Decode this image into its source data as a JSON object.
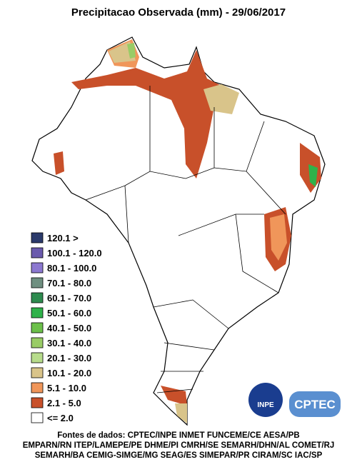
{
  "header": {
    "title": "Precipitacao Observada (mm) - 29/06/2017"
  },
  "legend": [
    {
      "label": "120.1 >",
      "color": "#2b3a6b"
    },
    {
      "label": "100.1 - 120.0",
      "color": "#6a5aad"
    },
    {
      "label": "80.1 - 100.0",
      "color": "#8c78d0"
    },
    {
      "label": "70.1 - 80.0",
      "color": "#6f8f80"
    },
    {
      "label": "60.1 - 70.0",
      "color": "#2e8b4f"
    },
    {
      "label": "50.1 - 60.0",
      "color": "#2fb24a"
    },
    {
      "label": "40.1 - 50.0",
      "color": "#6cc04a"
    },
    {
      "label": "30.1 - 40.0",
      "color": "#99cc66"
    },
    {
      "label": "20.1 - 30.0",
      "color": "#b7dc8c"
    },
    {
      "label": "10.1 - 20.0",
      "color": "#d9c48a"
    },
    {
      "label": "5.1 - 10.0",
      "color": "#f0965a"
    },
    {
      "label": "2.1 - 5.0",
      "color": "#c8502a"
    },
    {
      "label": "<= 2.0",
      "color": "#ffffff"
    }
  ],
  "logos": {
    "inpe": "INPE",
    "cptec": "CPTEC"
  },
  "footer": [
    "Fontes de dados: CPTEC/INPE INMET FUNCEME/CE AESA/PB",
    "EMPARN/RN ITEP/LAMEPE/PE DHME/PI CMRH/SE SEMARH/DHN/AL COMET/RJ",
    "SEMARH/BA CEMIG-SIMGE/MG SEAG/ES SIMEPAR/PR CIRAM/SC IAC/SP"
  ]
}
